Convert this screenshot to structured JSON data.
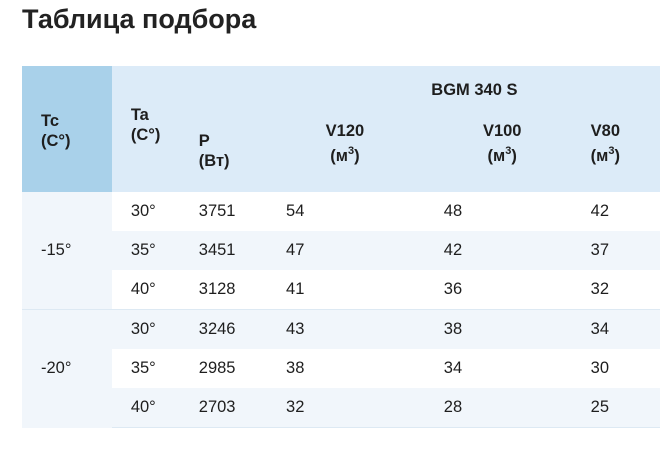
{
  "title": "Таблица подбора",
  "header": {
    "tc": {
      "name": "Tc",
      "unit": "(C°)"
    },
    "ta": {
      "name": "Ta",
      "unit": "(C°)"
    },
    "model": "BGM 340 S",
    "p": {
      "name": "P",
      "unit": "(Вт)"
    },
    "v120": {
      "name": "V120",
      "unit": "(м",
      "sup": "3",
      "close": ")"
    },
    "v100": {
      "name": "V100",
      "unit": "(м",
      "sup": "3",
      "close": ")"
    },
    "v80": {
      "name": "V80",
      "unit": "(м",
      "sup": "3",
      "close": ")"
    }
  },
  "groups": [
    {
      "tc": "-15°",
      "rows": [
        {
          "ta": "30°",
          "p": "3751",
          "v120": "54",
          "v100": "48",
          "v80": "42"
        },
        {
          "ta": "35°",
          "p": "3451",
          "v120": "47",
          "v100": "42",
          "v80": "37"
        },
        {
          "ta": "40°",
          "p": "3128",
          "v120": "41",
          "v100": "36",
          "v80": "32"
        }
      ]
    },
    {
      "tc": "-20°",
      "rows": [
        {
          "ta": "30°",
          "p": "3246",
          "v120": "43",
          "v100": "38",
          "v80": "34"
        },
        {
          "ta": "35°",
          "p": "2985",
          "v120": "38",
          "v100": "34",
          "v80": "30"
        },
        {
          "ta": "40°",
          "p": "2703",
          "v120": "32",
          "v100": "28",
          "v80": "25"
        }
      ]
    }
  ]
}
